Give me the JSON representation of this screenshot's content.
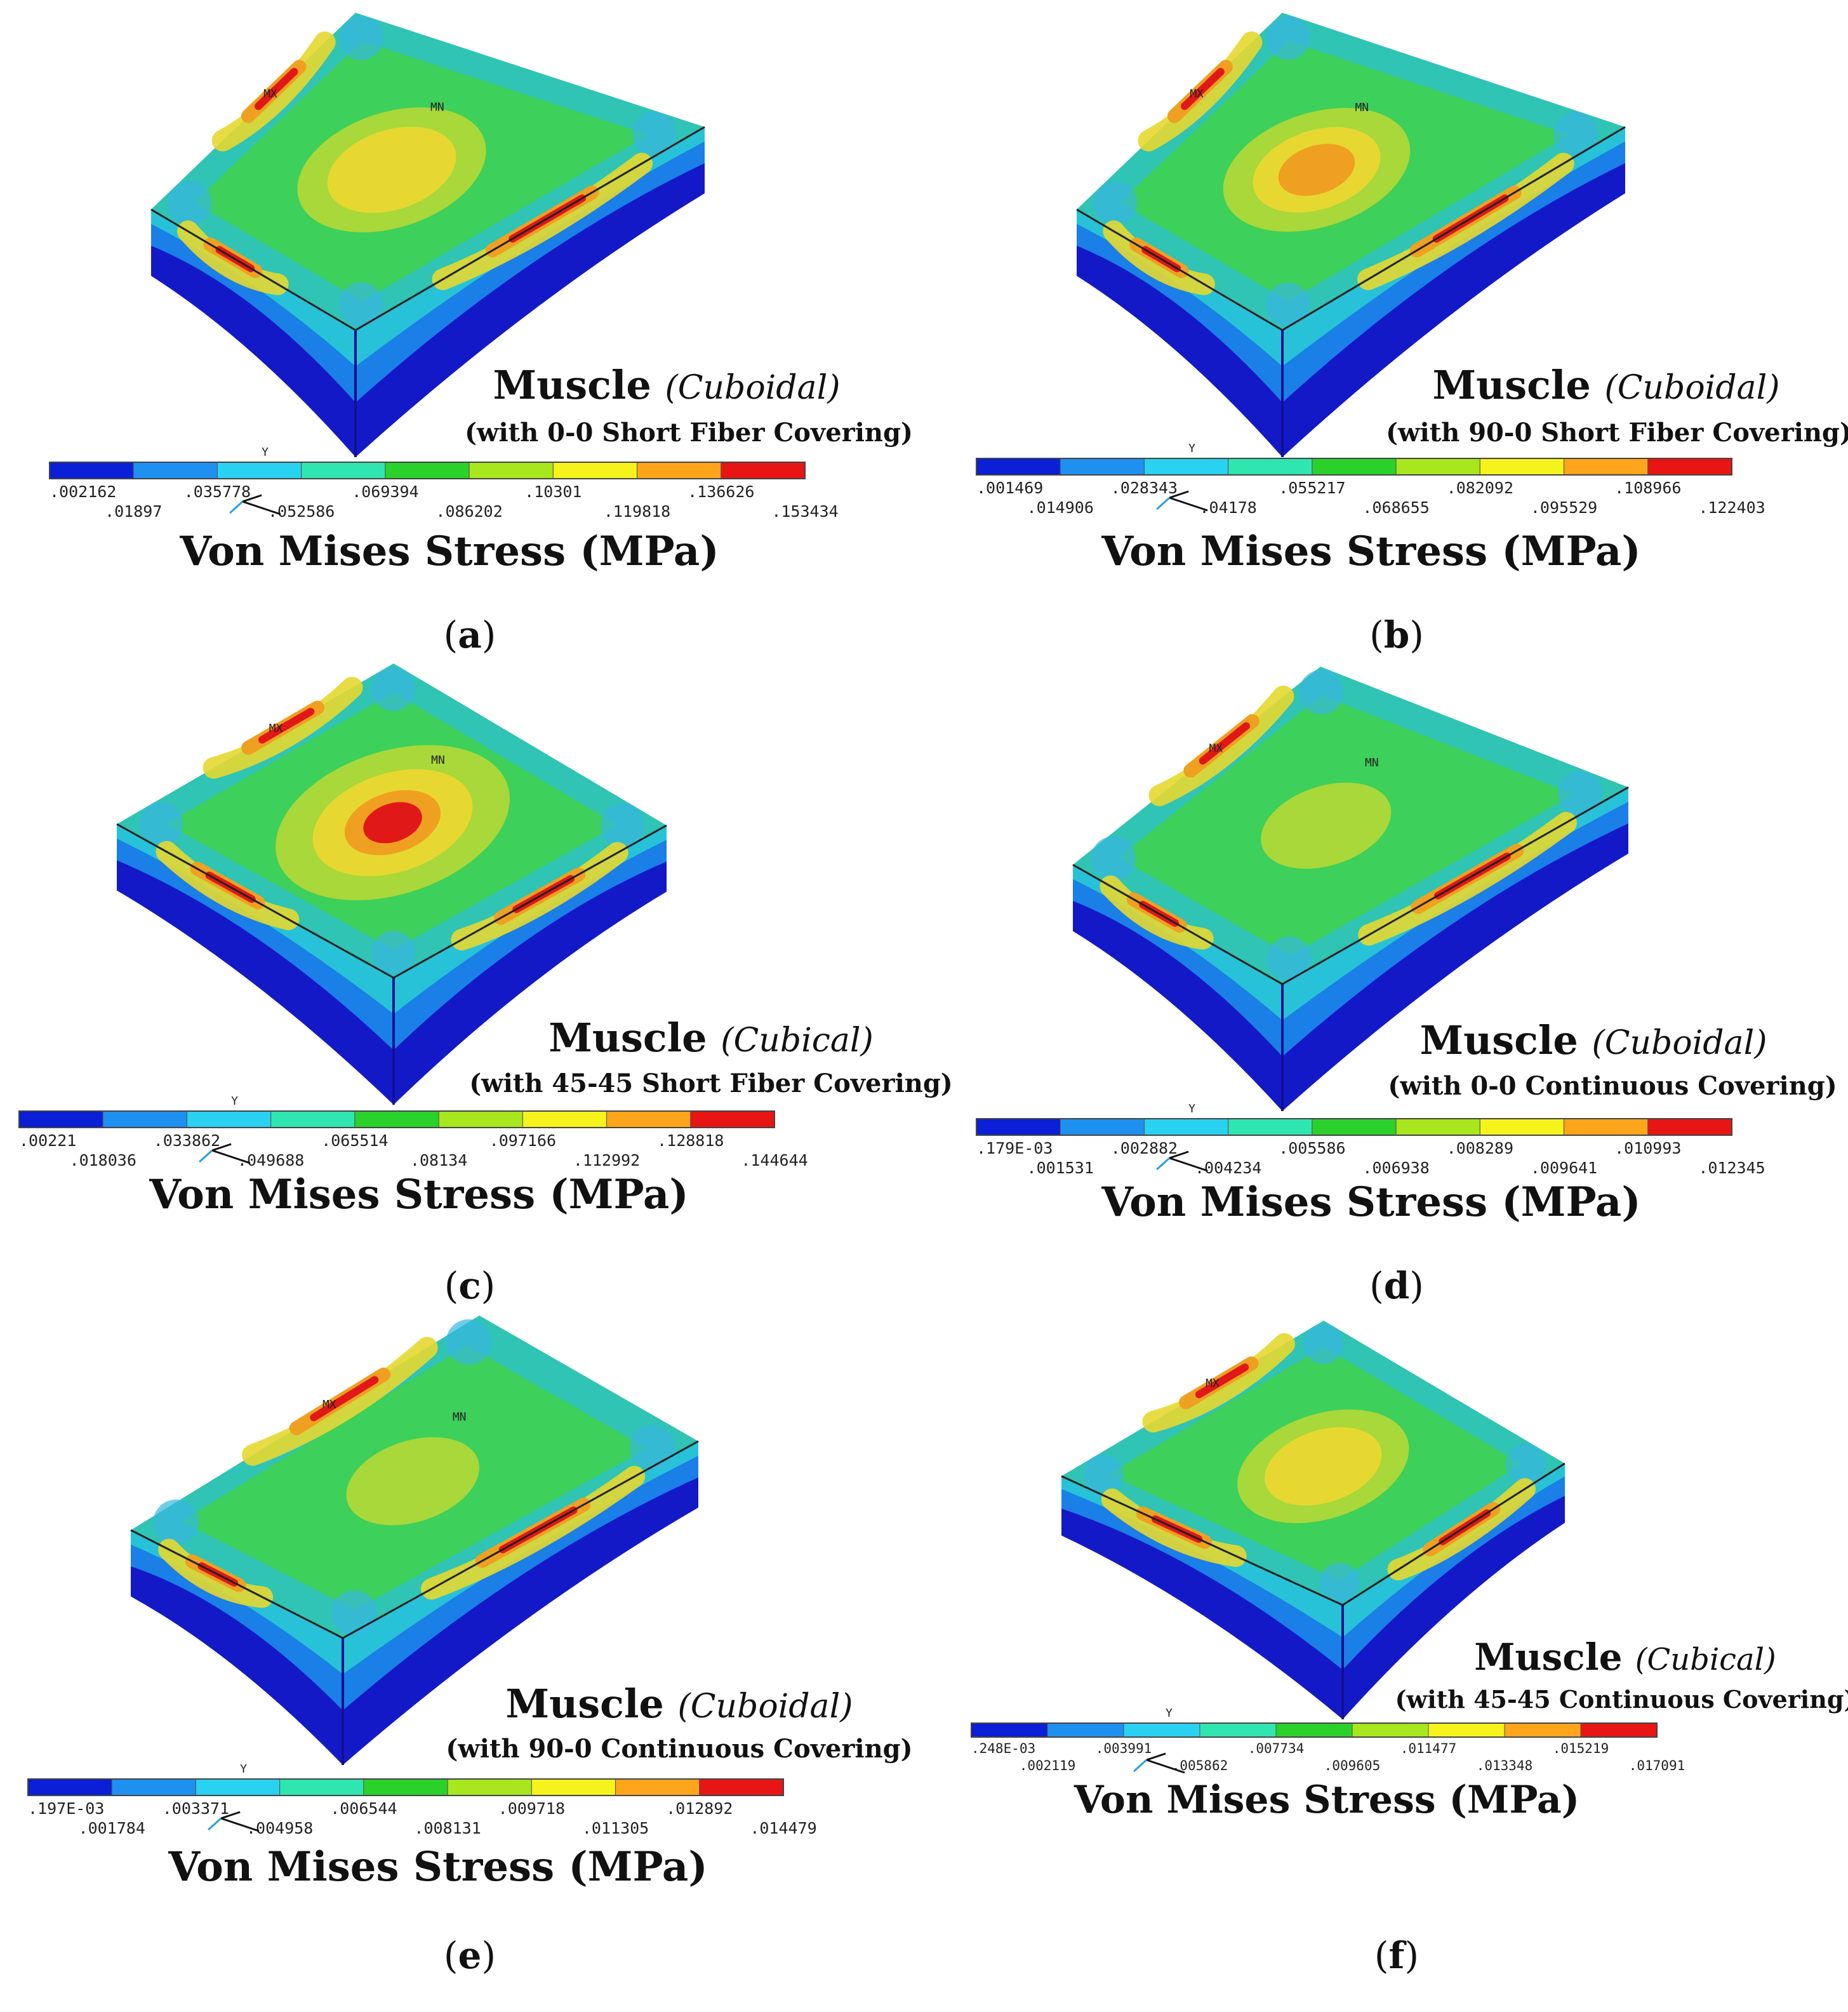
{
  "panels": [
    {
      "id": "a",
      "caption_letter": "a",
      "title": "Muscle",
      "shape": "(Cuboidal)",
      "covering": "(with 0-0 Short Fiber Covering)",
      "legend_title": "Von Mises Stress (MPa)",
      "legend_ticks": [
        ".002162",
        ".01897",
        ".035778",
        ".052586",
        ".069394",
        ".086202",
        ".10301",
        ".119818",
        ".136626",
        ".153434"
      ],
      "markers": [
        "MX",
        "MN"
      ],
      "hotspot": "yellow",
      "hotspot_size": "medium"
    },
    {
      "id": "b",
      "caption_letter": "b",
      "title": "Muscle",
      "shape": "(Cuboidal)",
      "covering": "(with 90-0 Short Fiber Covering)",
      "legend_title": "Von Mises Stress (MPa)",
      "legend_ticks": [
        ".001469",
        ".014906",
        ".028343",
        ".04178",
        ".055217",
        ".068655",
        ".082092",
        ".095529",
        ".108966",
        ".122403"
      ],
      "markers": [
        "MX",
        "MN"
      ],
      "hotspot": "orange",
      "hotspot_size": "medium"
    },
    {
      "id": "c",
      "caption_letter": "c",
      "title": "Muscle",
      "shape": "(Cubical)",
      "covering": "(with 45-45 Short Fiber Covering)",
      "legend_title": "Von Mises Stress (MPa)",
      "legend_ticks": [
        ".00221",
        ".018036",
        ".033862",
        ".049688",
        ".065514",
        ".08134",
        ".097166",
        ".112992",
        ".128818",
        ".144644"
      ],
      "markers": [
        "MX",
        "MN"
      ],
      "hotspot": "red",
      "hotspot_size": "large"
    },
    {
      "id": "d",
      "caption_letter": "d",
      "title": "Muscle",
      "shape": "(Cuboidal)",
      "covering": "(with 0-0 Continuous Covering)",
      "legend_title": "Von Mises Stress (MPa)",
      "legend_ticks": [
        ".179E-03",
        ".001531",
        ".002882",
        ".004234",
        ".005586",
        ".006938",
        ".008289",
        ".009641",
        ".010993",
        ".012345"
      ],
      "markers": [
        "MX",
        "MN"
      ],
      "hotspot": "lime",
      "hotspot_size": "small"
    },
    {
      "id": "e",
      "caption_letter": "e",
      "title": "Muscle",
      "shape": "(Cuboidal)",
      "covering": "(with 90-0 Continuous Covering)",
      "legend_title": "Von Mises Stress (MPa)",
      "legend_ticks": [
        ".197E-03",
        ".001784",
        ".003371",
        ".004958",
        ".006544",
        ".008131",
        ".009718",
        ".011305",
        ".012892",
        ".014479"
      ],
      "markers": [
        "MX",
        "MN"
      ],
      "hotspot": "lime",
      "hotspot_size": "small"
    },
    {
      "id": "f",
      "caption_letter": "f",
      "title": "Muscle",
      "shape": "(Cubical)",
      "covering": "(with 45-45 Continuous Covering)",
      "legend_title": "Von Mises Stress (MPa)",
      "legend_ticks": [
        ".248E-03",
        ".002119",
        ".003991",
        ".005862",
        ".007734",
        ".009605",
        ".011477",
        ".013348",
        ".015219",
        ".017091"
      ],
      "markers": [
        "MX"
      ],
      "hotspot": "yellow",
      "hotspot_size": "medium"
    }
  ],
  "legend_colors": [
    "#0a1fd6",
    "#1e90f0",
    "#28d2f0",
    "#2fe6b0",
    "#2bd12b",
    "#a8e61e",
    "#f6f21c",
    "#ffa51c",
    "#e81515"
  ],
  "surface_colors": {
    "base_dark": "#1419c8",
    "base_mid": "#1a7fe6",
    "side": "#27c2d8",
    "top": "#2fc4b4",
    "green": "#3dd05a",
    "lime": "#a8d83a",
    "yellow": "#e6d830",
    "orange": "#f0a020",
    "red": "#e01818",
    "edge": "#222222"
  }
}
